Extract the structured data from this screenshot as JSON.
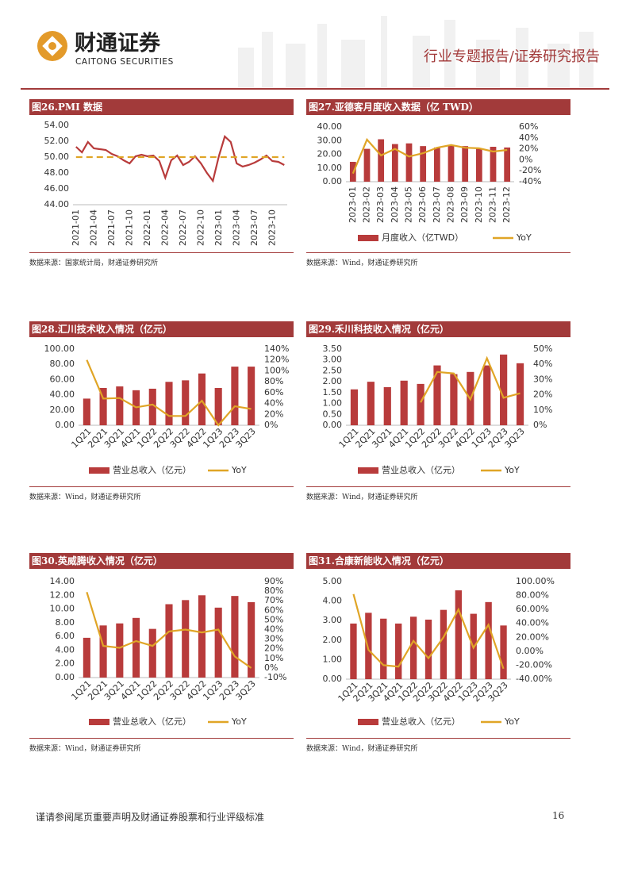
{
  "header": {
    "logo_cn": "财通证券",
    "logo_en": "CAITONG SECURITIES",
    "report_type": "行业专题报告/证券研究报告"
  },
  "chart_data": [
    {
      "type": "line",
      "title": "图26.PMI 数据",
      "source": "数据来源：国家统计局，财通证券研究所",
      "categories": [
        "2021-01",
        null,
        null,
        "2021-04",
        null,
        null,
        "2021-07",
        null,
        null,
        "2021-10",
        null,
        null,
        "2022-01",
        null,
        null,
        "2022-04",
        null,
        null,
        "2022-07",
        null,
        null,
        "2022-10",
        null,
        null,
        "2023-01",
        null,
        null,
        "2023-04",
        null,
        null,
        "2023-07",
        null,
        null,
        "2023-10",
        null,
        null
      ],
      "series": [
        {
          "color": "#b83b3b",
          "values": [
            51.3,
            50.6,
            51.9,
            51.1,
            51.0,
            50.9,
            50.4,
            50.1,
            49.6,
            49.2,
            50.1,
            50.3,
            50.1,
            50.2,
            49.5,
            47.4,
            49.6,
            50.2,
            49.0,
            49.4,
            50.1,
            49.2,
            48.0,
            47.0,
            50.1,
            52.6,
            51.9,
            49.2,
            48.8,
            49.0,
            49.3,
            49.7,
            50.2,
            49.5,
            49.4,
            49.0
          ]
        },
        {
          "color": "#e0a526",
          "dashed": true,
          "values": [
            50,
            50,
            50,
            50,
            50,
            50,
            50,
            50,
            50,
            50,
            50,
            50,
            50,
            50,
            50,
            50,
            50,
            50,
            50,
            50,
            50,
            50,
            50,
            50,
            50,
            50,
            50,
            50,
            50,
            50,
            50,
            50,
            50,
            50,
            50,
            50
          ]
        }
      ],
      "ylim": [
        44,
        54
      ],
      "yticks": [
        {
          "value": 44,
          "label": "44.00"
        },
        {
          "value": 46,
          "label": "46.00"
        },
        {
          "value": 48,
          "label": "48.00"
        },
        {
          "value": 50,
          "label": "50.00"
        },
        {
          "value": 52,
          "label": "52.00"
        },
        {
          "value": 54,
          "label": "54.00"
        }
      ]
    },
    {
      "type": "bar_line",
      "title": "图27.亚德客月度收入数据（亿 TWD）",
      "source": "数据来源：Wind，财通证券研究所",
      "categories": [
        "2023-01",
        "2023-02",
        "2023-03",
        "2023-04",
        "2023-05",
        "2023-06",
        "2023-07",
        "2023-08",
        "2023-09",
        "2023-10",
        "2023-11",
        "2023-12"
      ],
      "series": [
        {
          "name": "月度收入（亿TWD）",
          "color": "#b83b3b",
          "values": [
            14.5,
            24,
            31,
            27.5,
            28,
            26,
            25,
            26.5,
            26,
            24,
            25.5,
            25
          ]
        },
        {
          "name": "YoY",
          "color": "#e0a526",
          "axis": "y2",
          "values": [
            -25,
            37,
            8,
            20,
            6,
            12,
            22,
            27,
            22,
            21,
            15,
            18
          ]
        }
      ],
      "ylim": [
        0,
        40
      ],
      "yticks": [
        {
          "value": 0,
          "label": "0.00"
        },
        {
          "value": 10,
          "label": "10.00"
        },
        {
          "value": 20,
          "label": "20.00"
        },
        {
          "value": 30,
          "label": "30.00"
        },
        {
          "value": 40,
          "label": "40.00"
        }
      ],
      "y2lim": [
        -40,
        60
      ],
      "y2ticks": [
        {
          "value": -40,
          "label": "-40%"
        },
        {
          "value": -20,
          "label": "-20%"
        },
        {
          "value": 0,
          "label": "0%"
        },
        {
          "value": 20,
          "label": "20%"
        },
        {
          "value": 40,
          "label": "40%"
        },
        {
          "value": 60,
          "label": "60%"
        }
      ]
    },
    {
      "type": "bar_line",
      "title": "图28.汇川技术收入情况（亿元）",
      "source": "数据来源：Wind，财通证券研究所",
      "categories": [
        "1Q21",
        "2Q21",
        "3Q21",
        "4Q21",
        "1Q22",
        "2Q22",
        "3Q22",
        "4Q22",
        "1Q23",
        "2Q23",
        "3Q23"
      ],
      "series": [
        {
          "name": "营业总收入（亿元）",
          "color": "#b83b3b",
          "values": [
            35,
            49,
            51,
            46,
            48,
            57,
            59,
            68,
            49,
            77,
            77
          ]
        },
        {
          "name": "YoY",
          "color": "#e0a526",
          "axis": "y2",
          "values": [
            120,
            49,
            50,
            33,
            38,
            17,
            17,
            45,
            0,
            35,
            30
          ]
        }
      ],
      "ylim": [
        0,
        100
      ],
      "yticks": [
        {
          "value": 0,
          "label": "0.00"
        },
        {
          "value": 20,
          "label": "20.00"
        },
        {
          "value": 40,
          "label": "40.00"
        },
        {
          "value": 60,
          "label": "60.00"
        },
        {
          "value": 80,
          "label": "80.00"
        },
        {
          "value": 100,
          "label": "100.00"
        }
      ],
      "y2lim": [
        0,
        140
      ],
      "y2ticks": [
        {
          "value": 0,
          "label": "0%"
        },
        {
          "value": 20,
          "label": "20%"
        },
        {
          "value": 40,
          "label": "40%"
        },
        {
          "value": 60,
          "label": "60%"
        },
        {
          "value": 80,
          "label": "80%"
        },
        {
          "value": 100,
          "label": "100%"
        },
        {
          "value": 120,
          "label": "120%"
        },
        {
          "value": 140,
          "label": "140%"
        }
      ]
    },
    {
      "type": "bar_line",
      "title": "图29.禾川科技收入情况（亿元）",
      "source": "数据来源：Wind，财通证券研究所",
      "categories": [
        "1Q21",
        "2Q21",
        "3Q21",
        "4Q21",
        "1Q22",
        "2Q22",
        "3Q22",
        "4Q22",
        "1Q23",
        "2Q23",
        "3Q23"
      ],
      "series": [
        {
          "name": "营业总收入（亿元）",
          "color": "#b83b3b",
          "values": [
            1.65,
            2.0,
            1.75,
            2.05,
            1.9,
            2.75,
            2.35,
            2.45,
            2.75,
            3.25,
            2.85
          ]
        },
        {
          "name": "YoY",
          "color": "#e0a526",
          "axis": "y2",
          "values": [
            null,
            null,
            null,
            null,
            15,
            35,
            34,
            17,
            44,
            18,
            21
          ]
        }
      ],
      "ylim": [
        0,
        3.5
      ],
      "yticks": [
        {
          "value": 0,
          "label": "0.00"
        },
        {
          "value": 0.5,
          "label": "0.50"
        },
        {
          "value": 1,
          "label": "1.00"
        },
        {
          "value": 1.5,
          "label": "1.50"
        },
        {
          "value": 2,
          "label": "2.00"
        },
        {
          "value": 2.5,
          "label": "2.50"
        },
        {
          "value": 3,
          "label": "3.00"
        },
        {
          "value": 3.5,
          "label": "3.50"
        }
      ],
      "y2lim": [
        0,
        50
      ],
      "y2ticks": [
        {
          "value": 0,
          "label": "0%"
        },
        {
          "value": 10,
          "label": "10%"
        },
        {
          "value": 20,
          "label": "20%"
        },
        {
          "value": 30,
          "label": "30%"
        },
        {
          "value": 40,
          "label": "40%"
        },
        {
          "value": 50,
          "label": "50%"
        }
      ]
    },
    {
      "type": "bar_line",
      "title": "图30.英威腾收入情况（亿元）",
      "source": "数据来源：Wind，财通证券研究所",
      "categories": [
        "1Q21",
        "2Q21",
        "3Q21",
        "4Q21",
        "1Q22",
        "2Q22",
        "3Q22",
        "4Q22",
        "1Q23",
        "2Q23",
        "3Q23"
      ],
      "series": [
        {
          "name": "营业总收入（亿元）",
          "color": "#b83b3b",
          "values": [
            5.8,
            7.6,
            7.9,
            8.7,
            7.1,
            10.7,
            11.3,
            12,
            10.2,
            11.9,
            11
          ]
        },
        {
          "name": "YoY",
          "color": "#e0a526",
          "axis": "y2",
          "values": [
            79,
            23,
            21,
            28,
            23,
            38,
            40,
            37,
            40,
            12,
            0
          ]
        }
      ],
      "ylim": [
        0,
        14
      ],
      "yticks": [
        {
          "value": 0,
          "label": "0.00"
        },
        {
          "value": 2,
          "label": "2.00"
        },
        {
          "value": 4,
          "label": "4.00"
        },
        {
          "value": 6,
          "label": "6.00"
        },
        {
          "value": 8,
          "label": "8.00"
        },
        {
          "value": 10,
          "label": "10.00"
        },
        {
          "value": 12,
          "label": "12.00"
        },
        {
          "value": 14,
          "label": "14.00"
        }
      ],
      "y2lim": [
        -10,
        90
      ],
      "y2ticks": [
        {
          "value": -10,
          "label": "-10%"
        },
        {
          "value": 0,
          "label": "0%"
        },
        {
          "value": 10,
          "label": "10%"
        },
        {
          "value": 20,
          "label": "20%"
        },
        {
          "value": 30,
          "label": "30%"
        },
        {
          "value": 40,
          "label": "40%"
        },
        {
          "value": 50,
          "label": "50%"
        },
        {
          "value": 60,
          "label": "60%"
        },
        {
          "value": 70,
          "label": "70%"
        },
        {
          "value": 80,
          "label": "80%"
        },
        {
          "value": 90,
          "label": "90%"
        }
      ]
    },
    {
      "type": "bar_line",
      "title": "图31.合康新能收入情况（亿元）",
      "source": "数据来源：Wind，财通证券研究所",
      "categories": [
        "1Q21",
        "2Q21",
        "3Q21",
        "4Q21",
        "1Q22",
        "2Q22",
        "3Q22",
        "4Q22",
        "1Q23",
        "2Q23",
        "3Q23"
      ],
      "series": [
        {
          "name": "营业总收入（亿元）",
          "color": "#b83b3b",
          "values": [
            2.85,
            3.4,
            3.1,
            2.85,
            3.2,
            3.05,
            3.55,
            4.55,
            3.35,
            3.95,
            2.75
          ]
        },
        {
          "name": "YoY",
          "color": "#e0a526",
          "axis": "y2",
          "values": [
            82,
            2,
            -20,
            -22,
            15,
            -10,
            20,
            60,
            5,
            38,
            -25
          ]
        }
      ],
      "ylim": [
        0,
        5
      ],
      "yticks": [
        {
          "value": 0,
          "label": "0.00"
        },
        {
          "value": 1,
          "label": "1.00"
        },
        {
          "value": 2,
          "label": "2.00"
        },
        {
          "value": 3,
          "label": "3.00"
        },
        {
          "value": 4,
          "label": "4.00"
        },
        {
          "value": 5,
          "label": "5.00"
        }
      ],
      "y2lim": [
        -40,
        100
      ],
      "y2ticks": [
        {
          "value": -40,
          "label": "-40.00%"
        },
        {
          "value": -20,
          "label": "-20.00%"
        },
        {
          "value": 0,
          "label": "0.00%"
        },
        {
          "value": 20,
          "label": "20.00%"
        },
        {
          "value": 40,
          "label": "40.00%"
        },
        {
          "value": 60,
          "label": "60.00%"
        },
        {
          "value": 80,
          "label": "80.00%"
        },
        {
          "value": 100,
          "label": "100.00%"
        }
      ]
    }
  ],
  "footer": {
    "disclaimer": "谨请参阅尾页重要声明及财通证券股票和行业评级标准",
    "page_number": 16
  }
}
